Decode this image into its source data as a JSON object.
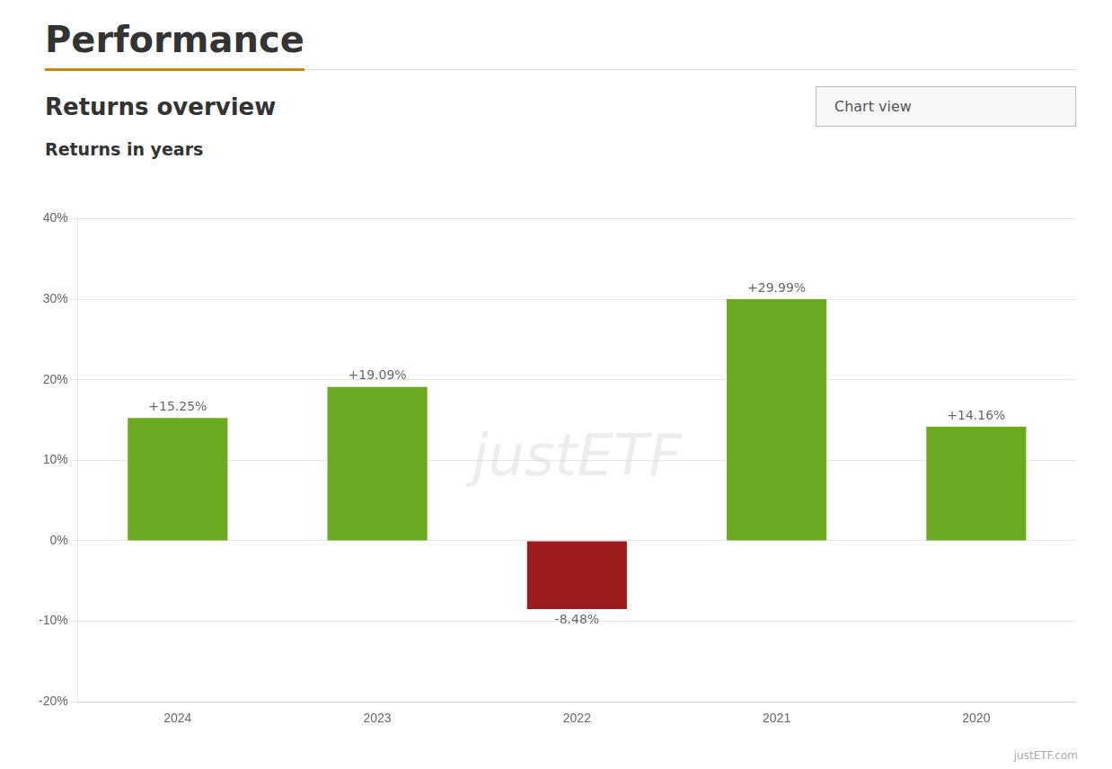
{
  "chart_data": {
    "type": "bar",
    "title": "Performance",
    "subtitle": "Returns overview",
    "annotations": [
      "Returns in years",
      "Chart view",
      "justETF",
      "justETF.com"
    ],
    "categories": [
      "2024",
      "2023",
      "2022",
      "2021",
      "2020"
    ],
    "values": [
      15.25,
      19.09,
      -8.48,
      29.99,
      14.16
    ],
    "value_labels": [
      "+15.25%",
      "+19.09%",
      "-8.48%",
      "+29.99%",
      "+14.16%"
    ],
    "colors": [
      "#6aaa1e",
      "#6aaa1e",
      "#9b1c1c",
      "#6aaa1e",
      "#6aaa1e"
    ],
    "ylim": [
      -20,
      40
    ],
    "yticks": [
      {
        "value": -20,
        "label": "-20%"
      },
      {
        "value": -10,
        "label": "-10%"
      },
      {
        "value": 0,
        "label": "0%"
      },
      {
        "value": 10,
        "label": "10%"
      },
      {
        "value": 20,
        "label": "20%"
      },
      {
        "value": 30,
        "label": "30%"
      },
      {
        "value": 40,
        "label": "40%"
      }
    ],
    "grid": true,
    "data_labels": true
  }
}
